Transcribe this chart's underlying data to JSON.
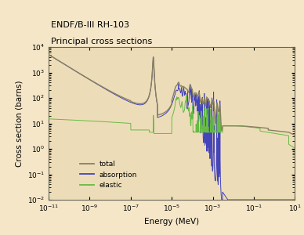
{
  "title_line1": "ENDF/B-III RH-103",
  "title_line2": "Principal cross sections",
  "xlabel": "Energy (MeV)",
  "ylabel": "Cross section (barns)",
  "bg_color": "#f5e6c8",
  "plot_bg_color": "#ecddb8",
  "total_color": "#888060",
  "absorption_color": "#4444bb",
  "elastic_color": "#66bb44",
  "xmin": 1e-11,
  "xmax": 10.0,
  "ymin": 0.01,
  "ymax": 10000.0
}
